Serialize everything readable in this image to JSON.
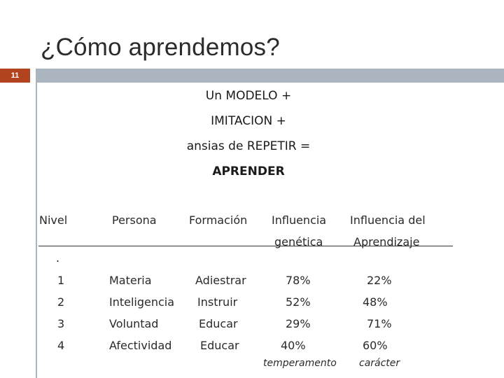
{
  "slide": {
    "title": "¿Cómo aprendemos?",
    "number": "11"
  },
  "equation": {
    "line1": "Un MODELO  +",
    "line2": "IMITACION  +",
    "line3": "ansias de REPETIR  =",
    "line4": "APRENDER"
  },
  "table": {
    "headers": [
      "Nivel",
      "Persona",
      "Formación",
      "Influencia",
      "genética",
      "Influencia del",
      "Aprendizaje"
    ],
    "row_marker": ".",
    "rows": [
      {
        "nivel": "1",
        "persona": "Materia",
        "formacion": "Adiestrar",
        "genetica": "78%",
        "aprendizaje": "22%"
      },
      {
        "nivel": "2",
        "persona": "Inteligencia",
        "formacion": "Instruir",
        "genetica": "52%",
        "aprendizaje": "48%"
      },
      {
        "nivel": "3",
        "persona": "Voluntad",
        "formacion": "Educar",
        "genetica": "29%",
        "aprendizaje": "71%"
      },
      {
        "nivel": "4",
        "persona": "Afectividad",
        "formacion": "Educar",
        "genetica": "40%",
        "aprendizaje": "60%"
      }
    ],
    "footnotes": {
      "genetica": "temperamento",
      "aprendizaje": "carácter"
    }
  },
  "colors": {
    "accent_orange": "#b1441f",
    "accent_gray": "#aab5c0"
  }
}
